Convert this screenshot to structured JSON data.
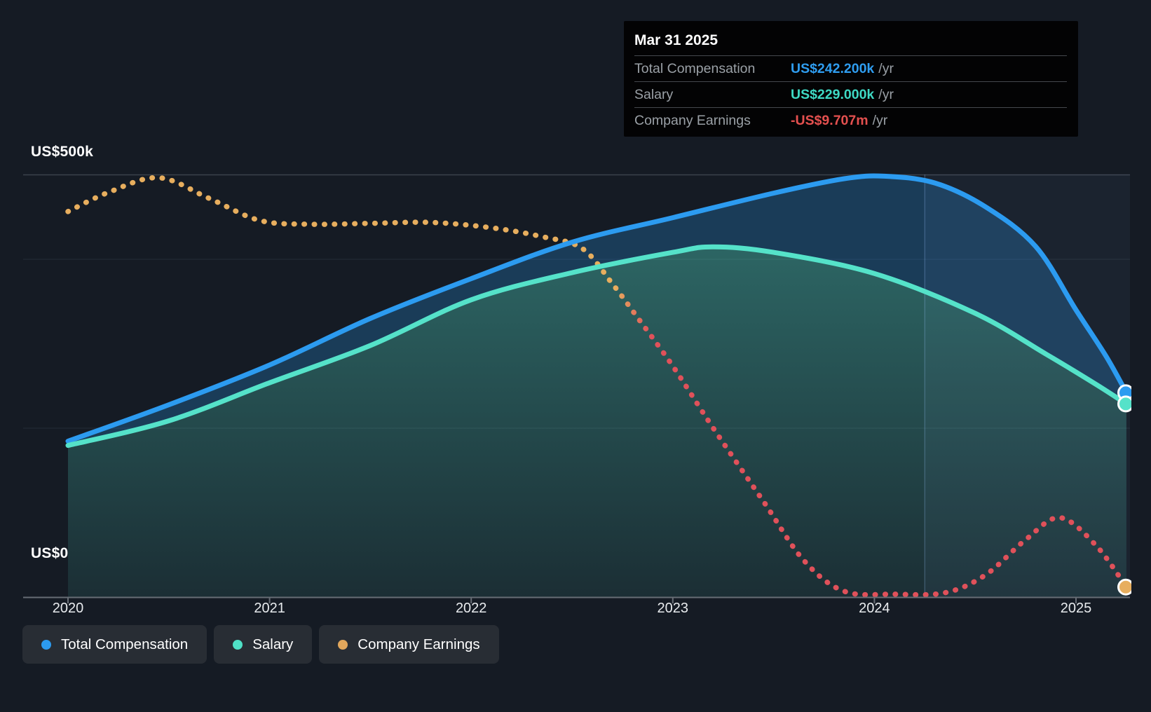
{
  "tooltip": {
    "title": "Mar 31 2025",
    "rows": [
      {
        "label": "Total Compensation",
        "value": "US$242.200k",
        "suffix": "/yr",
        "color": "#2f9df0"
      },
      {
        "label": "Salary",
        "value": "US$229.000k",
        "suffix": "/yr",
        "color": "#3ed9c4"
      },
      {
        "label": "Company Earnings",
        "value": "-US$9.707m",
        "suffix": "/yr",
        "color": "#e4504f"
      }
    ]
  },
  "y_axis": {
    "top_label": "US$500k",
    "bottom_label": "US$0"
  },
  "x_axis": {
    "ticks": [
      "2020",
      "2021",
      "2022",
      "2023",
      "2024",
      "2025"
    ]
  },
  "legend": [
    {
      "label": "Total Compensation",
      "color": "#2c9bf0"
    },
    {
      "label": "Salary",
      "color": "#4fe0c6"
    },
    {
      "label": "Company Earnings",
      "color": "#e2a75c"
    }
  ],
  "chart_data": {
    "type": "line",
    "x_ticks": [
      2020,
      2021,
      2022,
      2023,
      2024,
      2025
    ],
    "y_axis": {
      "min": 0,
      "max": 500000,
      "tick_labels": [
        "US$0",
        "US$500k"
      ],
      "gridlines_k": [
        500,
        400,
        200,
        0
      ]
    },
    "highlight_band_start_x": 2024.25,
    "legend_position": "bottom-left",
    "series": [
      {
        "name": "Total Compensation",
        "type": "line",
        "style": "solid",
        "unit": "US$ thousands/yr",
        "color": "#2c9bf0",
        "points": [
          [
            2020,
            185
          ],
          [
            2020.5,
            228
          ],
          [
            2021,
            275
          ],
          [
            2021.5,
            330
          ],
          [
            2022,
            377
          ],
          [
            2022.5,
            420
          ],
          [
            2023,
            449
          ],
          [
            2023.5,
            478
          ],
          [
            2023.85,
            495
          ],
          [
            2024.05,
            498
          ],
          [
            2024.3,
            490
          ],
          [
            2024.55,
            462
          ],
          [
            2024.8,
            415
          ],
          [
            2025,
            340
          ],
          [
            2025.15,
            285
          ],
          [
            2025.25,
            242.2
          ]
        ]
      },
      {
        "name": "Salary",
        "type": "line",
        "style": "solid",
        "unit": "US$ thousands/yr",
        "color": "#55e2c9",
        "points": [
          [
            2020,
            180
          ],
          [
            2020.5,
            209
          ],
          [
            2021,
            254
          ],
          [
            2021.5,
            298
          ],
          [
            2022,
            352
          ],
          [
            2022.5,
            384
          ],
          [
            2023,
            408
          ],
          [
            2023.2,
            414.5
          ],
          [
            2023.5,
            408
          ],
          [
            2024,
            383
          ],
          [
            2024.5,
            336
          ],
          [
            2024.85,
            288
          ],
          [
            2025.1,
            252
          ],
          [
            2025.25,
            229
          ]
        ]
      },
      {
        "name": "Company Earnings",
        "type": "line",
        "style": "dotted",
        "unit": "US$ millions/yr",
        "color_positive": "#e7ae5e",
        "color_negative": "#e0515a",
        "points": [
          [
            2020,
            3.05
          ],
          [
            2020.2,
            3.7
          ],
          [
            2020.45,
            4.2
          ],
          [
            2020.7,
            3.5
          ],
          [
            2020.95,
            2.75
          ],
          [
            2021.2,
            2.62
          ],
          [
            2021.5,
            2.65
          ],
          [
            2021.8,
            2.68
          ],
          [
            2022.1,
            2.5
          ],
          [
            2022.35,
            2.2
          ],
          [
            2022.55,
            1.8
          ],
          [
            2022.7,
            0.6
          ],
          [
            2022.82,
            -0.5
          ],
          [
            2023,
            -2.2
          ],
          [
            2023.2,
            -4.3
          ],
          [
            2023.45,
            -6.8
          ],
          [
            2023.65,
            -8.8
          ],
          [
            2023.85,
            -9.85
          ],
          [
            2024.1,
            -9.95
          ],
          [
            2024.35,
            -9.9
          ],
          [
            2024.55,
            -9.3
          ],
          [
            2024.75,
            -8.1
          ],
          [
            2024.92,
            -7.35
          ],
          [
            2025.1,
            -8.3
          ],
          [
            2025.25,
            -9.707
          ]
        ]
      }
    ]
  }
}
